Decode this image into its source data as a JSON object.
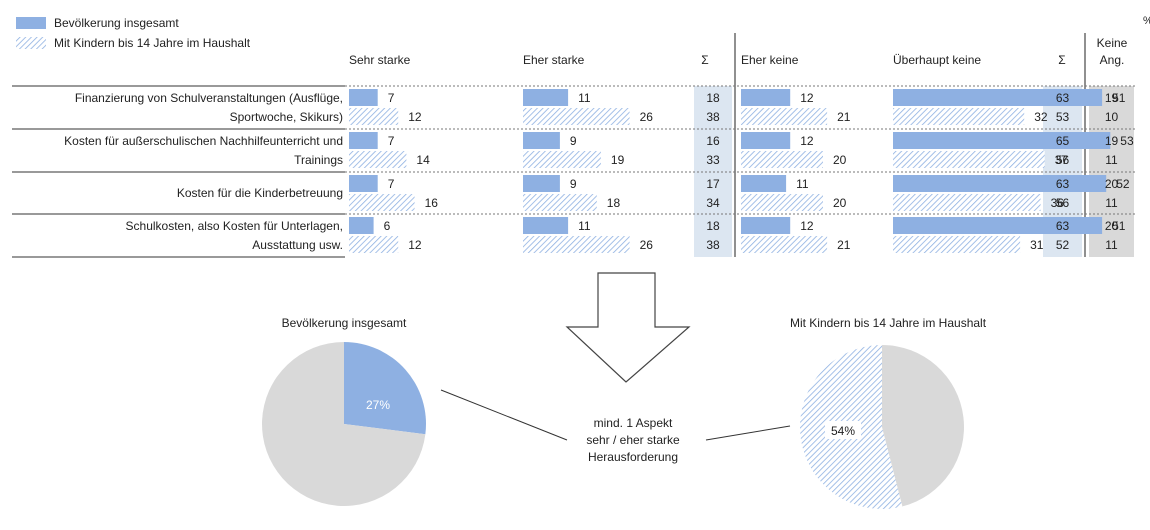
{
  "percent_sign": "%",
  "legend": [
    {
      "label": "Bevölkerung insgesamt",
      "pattern": "solid",
      "color": "#8EB0E2"
    },
    {
      "label": "Mit Kindern bis 14 Jahre im Haushalt",
      "pattern": "hatch",
      "color": "#8EB0E2"
    }
  ],
  "colors": {
    "bar": "#8EB0E2",
    "hatch": "#8EB0E2",
    "sum_bg": "#DCE6F1",
    "keine_bg": "#D9D9D9",
    "pie_rest": "#D9D9D9"
  },
  "chart_data": [
    {
      "type": "bar",
      "orientation": "horizontal",
      "unit": "%",
      "columns": [
        {
          "key": "sehr",
          "label": "Sehr starke"
        },
        {
          "key": "eher",
          "label": "Eher starke"
        },
        {
          "key": "sum_stark",
          "label": "Σ"
        },
        {
          "key": "eher_keine",
          "label": "Eher keine"
        },
        {
          "key": "ueberhaupt",
          "label": "Überhaupt keine"
        },
        {
          "key": "sum_keine",
          "label": "Σ"
        },
        {
          "key": "keine_ang",
          "label": "Keine\nAng."
        }
      ],
      "categories": [
        "Finanzierung von Schulveranstaltungen (Ausflüge,\nSportwoche, Skikurs)",
        "Kosten für außerschulischen Nachhilfeunterricht und\nTrainings",
        "Kosten für die Kinderbetreuung",
        "Schulkosten, also Kosten für Unterlagen,\nAusstattung usw."
      ],
      "series": [
        {
          "name": "Bevölkerung insgesamt",
          "sehr": [
            7,
            7,
            7,
            6
          ],
          "eher": [
            11,
            9,
            9,
            11
          ],
          "sum_stark": [
            18,
            16,
            17,
            18
          ],
          "eher_keine": [
            12,
            12,
            11,
            12
          ],
          "ueberhaupt": [
            51,
            53,
            52,
            51
          ],
          "sum_keine": [
            63,
            65,
            63,
            63
          ],
          "keine_ang": [
            19,
            19,
            20,
            20
          ]
        },
        {
          "name": "Mit Kindern bis 14 Jahre im Haushalt",
          "sehr": [
            12,
            14,
            16,
            12
          ],
          "eher": [
            26,
            19,
            18,
            26
          ],
          "sum_stark": [
            38,
            33,
            34,
            38
          ],
          "eher_keine": [
            21,
            20,
            20,
            21
          ],
          "ueberhaupt": [
            32,
            37,
            36,
            31
          ],
          "sum_keine": [
            53,
            56,
            56,
            52
          ],
          "keine_ang": [
            10,
            11,
            11,
            11
          ]
        }
      ]
    },
    {
      "type": "pie",
      "title": "Bevölkerung  insgesamt",
      "slices": [
        {
          "value": 27,
          "label": "27%"
        },
        {
          "value": 73,
          "label": ""
        }
      ]
    },
    {
      "type": "pie",
      "title": "Mit Kindern  bis 14 Jahre im Haushalt",
      "slices": [
        {
          "value": 54,
          "label": "54%"
        },
        {
          "value": 46,
          "label": ""
        }
      ]
    }
  ],
  "annotation": "mind. 1 Aspekt\nsehr / eher starke\nHerausforderung"
}
